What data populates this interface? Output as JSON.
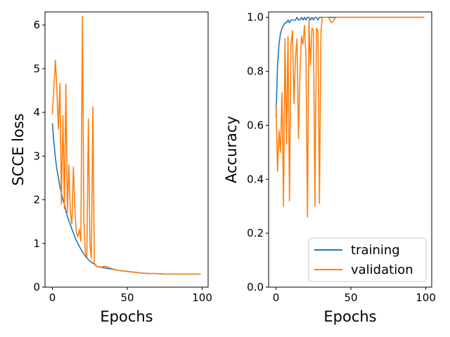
{
  "chart_data": [
    {
      "type": "line",
      "xlabel": "Epochs",
      "ylabel": "SCCE loss",
      "xlim": [
        -4.95,
        103.95
      ],
      "ylim": [
        0,
        6.3
      ],
      "xticks": [
        "0",
        "50",
        "100"
      ],
      "yticks": [
        "0",
        "1",
        "2",
        "3",
        "4",
        "5",
        "6"
      ],
      "grid": false,
      "series": [
        {
          "name": "training",
          "color": "#1f77b4",
          "x": [
            0,
            1,
            2,
            3,
            4,
            5,
            6,
            7,
            8,
            9,
            10,
            11,
            12,
            13,
            14,
            15,
            16,
            17,
            18,
            19,
            20,
            21,
            22,
            23,
            24,
            25,
            26,
            27,
            28,
            29,
            30,
            35,
            40,
            45,
            50,
            55,
            60,
            65,
            70,
            75,
            80,
            85,
            90,
            95,
            99
          ],
          "y": [
            3.75,
            3.3,
            2.95,
            2.7,
            2.5,
            2.3,
            2.15,
            2.0,
            1.9,
            1.75,
            1.62,
            1.52,
            1.43,
            1.33,
            1.24,
            1.15,
            1.07,
            1.0,
            0.93,
            0.87,
            0.81,
            0.76,
            0.71,
            0.67,
            0.63,
            0.6,
            0.57,
            0.55,
            0.53,
            0.5,
            0.47,
            0.44,
            0.41,
            0.38,
            0.36,
            0.34,
            0.32,
            0.31,
            0.31,
            0.3,
            0.3,
            0.3,
            0.3,
            0.3,
            0.3
          ]
        },
        {
          "name": "validation",
          "color": "#ff7f0e",
          "x": [
            0,
            1,
            2,
            3,
            4,
            5,
            6,
            7,
            8,
            9,
            10,
            11,
            12,
            13,
            14,
            15,
            16,
            17,
            18,
            19,
            20,
            21,
            22,
            23,
            24,
            25,
            26,
            27,
            28,
            29,
            30,
            31,
            33,
            35,
            40,
            45,
            50,
            55,
            60,
            65,
            70,
            75,
            80,
            85,
            90,
            95,
            99
          ],
          "y": [
            3.95,
            4.6,
            5.2,
            4.5,
            3.62,
            4.67,
            1.9,
            3.93,
            1.8,
            4.65,
            1.72,
            2.8,
            1.68,
            1.45,
            2.75,
            1.78,
            1.25,
            1.15,
            1.32,
            1.05,
            6.2,
            1.5,
            0.8,
            0.7,
            3.85,
            1.0,
            0.65,
            4.13,
            0.55,
            0.48,
            0.47,
            0.47,
            0.46,
            0.48,
            0.42,
            0.38,
            0.36,
            0.34,
            0.32,
            0.31,
            0.31,
            0.3,
            0.3,
            0.3,
            0.3,
            0.3,
            0.3
          ]
        }
      ]
    },
    {
      "type": "line",
      "xlabel": "Epochs",
      "ylabel": "Accuracy",
      "xlim": [
        -4.95,
        103.95
      ],
      "ylim": [
        0,
        1.02
      ],
      "xticks": [
        "0",
        "50",
        "100"
      ],
      "yticks": [
        "0.0",
        "0.2",
        "0.4",
        "0.6",
        "0.8",
        "1.0"
      ],
      "grid": false,
      "legend": "lower-right",
      "series": [
        {
          "name": "training",
          "color": "#1f77b4",
          "x": [
            0,
            1,
            2,
            3,
            4,
            5,
            6,
            7,
            8,
            9,
            10,
            11,
            12,
            13,
            14,
            15,
            16,
            17,
            18,
            19,
            20,
            21,
            22,
            23,
            24,
            25,
            26,
            27,
            28,
            29,
            30,
            35,
            40,
            50,
            60,
            70,
            80,
            90,
            99
          ],
          "y": [
            0.63,
            0.82,
            0.9,
            0.94,
            0.96,
            0.97,
            0.98,
            0.98,
            0.99,
            0.98,
            0.99,
            0.99,
            0.99,
            0.99,
            1.0,
            0.99,
            0.99,
            1.0,
            0.99,
            1.0,
            0.99,
            1.0,
            1.0,
            0.99,
            1.0,
            0.99,
            1.0,
            1.0,
            0.99,
            1.0,
            1.0,
            1.0,
            1.0,
            1.0,
            1.0,
            1.0,
            1.0,
            1.0,
            1.0
          ]
        },
        {
          "name": "validation",
          "color": "#ff7f0e",
          "x": [
            0,
            1,
            2,
            3,
            4,
            5,
            6,
            7,
            8,
            9,
            10,
            11,
            12,
            13,
            14,
            15,
            16,
            17,
            18,
            19,
            20,
            21,
            22,
            23,
            24,
            25,
            26,
            27,
            28,
            29,
            30,
            31,
            35,
            37,
            40,
            45,
            50,
            60,
            70,
            80,
            90,
            99
          ],
          "y": [
            0.68,
            0.43,
            0.58,
            0.5,
            0.72,
            0.3,
            0.92,
            0.53,
            0.93,
            0.32,
            0.9,
            0.95,
            0.68,
            0.85,
            0.92,
            0.55,
            0.8,
            0.93,
            0.9,
            0.97,
            0.85,
            0.26,
            0.99,
            0.82,
            0.96,
            0.95,
            0.3,
            0.96,
            0.95,
            0.31,
            0.95,
            1.0,
            1.0,
            0.98,
            1.0,
            1.0,
            1.0,
            1.0,
            1.0,
            1.0,
            1.0,
            1.0
          ]
        }
      ]
    }
  ]
}
